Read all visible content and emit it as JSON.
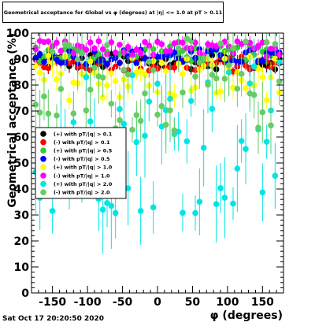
{
  "title": "Geometrical acceptance for Global vs φ (degrees) at |η| <= 1.0 at pT > 0.11",
  "timestamp": "Sat Oct 17 20:20:50 2020",
  "chart_data": {
    "type": "scatter",
    "title": "Geometrical acceptance for Global vs φ (degrees) at |η| <= 1.0 at pT > 0.11",
    "xlabel": "φ (degrees)",
    "ylabel": "Geometrical acceptance (%)",
    "xlim": [
      -180,
      180
    ],
    "ylim": [
      0,
      100
    ],
    "x_ticks": [
      -150,
      -100,
      -50,
      0,
      50,
      100,
      150
    ],
    "y_ticks": [
      0,
      10,
      20,
      30,
      40,
      50,
      60,
      70,
      80,
      90,
      100
    ],
    "grid": false,
    "legend_position": "center-left",
    "series": [
      {
        "name": "(+) with pT/|q| > 0.1",
        "color": "#000000",
        "base": 89,
        "spread": 3,
        "err": 2
      },
      {
        "name": "(-) with pT/|q| > 0.1",
        "color": "#ff0000",
        "base": 88,
        "spread": 3,
        "err": 2
      },
      {
        "name": "(+) with pT/|q| > 0.5",
        "color": "#33cc33",
        "base": 92,
        "spread": 3,
        "err": 2
      },
      {
        "name": "(-) with pT/|q| > 0.5",
        "color": "#0000ff",
        "base": 91,
        "spread": 3,
        "err": 2
      },
      {
        "name": "(+) with pT/|q| > 1.0",
        "color": "#ffff00",
        "base": 83,
        "spread": 9,
        "err": 4
      },
      {
        "name": "(-) with pT/|q| > 1.0",
        "color": "#ff00ff",
        "base": 94,
        "spread": 3,
        "err": 2
      },
      {
        "name": "(+) with pT/|q| > 2.0",
        "color": "#00e5e5",
        "base": 60,
        "spread": 30,
        "err": 12
      },
      {
        "name": "(-) with pT/|q| > 2.0",
        "color": "#66cc66",
        "base": 80,
        "spread": 18,
        "err": 8
      }
    ]
  }
}
